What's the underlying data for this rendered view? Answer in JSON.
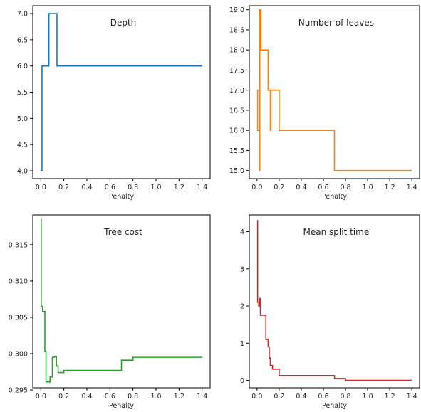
{
  "chart_data": [
    {
      "type": "line",
      "title": "Depth",
      "xlabel": "Penalty",
      "ylabel": "",
      "color": "#1f77b4",
      "step": true,
      "xlim": [
        -0.07,
        1.47
      ],
      "ylim": [
        3.85,
        7.15
      ],
      "xticks": [
        0.0,
        0.2,
        0.4,
        0.6,
        0.8,
        1.0,
        1.2,
        1.4
      ],
      "xtick_labels": [
        "0.0",
        "0.2",
        "0.4",
        "0.6",
        "0.8",
        "1.0",
        "1.2",
        "1.4"
      ],
      "yticks": [
        4.0,
        4.5,
        5.0,
        5.5,
        6.0,
        6.5,
        7.0
      ],
      "ytick_labels": [
        "4.0",
        "4.5",
        "5.0",
        "5.5",
        "6.0",
        "6.5",
        "7.0"
      ],
      "x": [
        0.0,
        0.01,
        0.07,
        0.14,
        1.4
      ],
      "y": [
        4.0,
        6.0,
        7.0,
        6.0,
        6.0
      ]
    },
    {
      "type": "line",
      "title": "Number of leaves",
      "xlabel": "Penalty",
      "ylabel": "",
      "color": "#ff7f0e",
      "step": true,
      "xlim": [
        -0.07,
        1.47
      ],
      "ylim": [
        14.8,
        19.1
      ],
      "xticks": [
        0.0,
        0.2,
        0.4,
        0.6,
        0.8,
        1.0,
        1.2,
        1.4
      ],
      "xtick_labels": [
        "0.0",
        "0.2",
        "0.4",
        "0.6",
        "0.8",
        "1.0",
        "1.2",
        "1.4"
      ],
      "yticks": [
        15.0,
        15.5,
        16.0,
        16.5,
        17.0,
        17.5,
        18.0,
        18.5,
        19.0
      ],
      "ytick_labels": [
        "15.0",
        "15.5",
        "16.0",
        "16.5",
        "17.0",
        "17.5",
        "18.0",
        "18.5",
        "19.0"
      ],
      "x": [
        0.0,
        0.005,
        0.02,
        0.025,
        0.035,
        0.1,
        0.12,
        0.125,
        0.14,
        0.2,
        0.65,
        0.7,
        1.4
      ],
      "y": [
        17.0,
        16.0,
        15.0,
        19.0,
        18.0,
        17.0,
        16.0,
        17.0,
        17.0,
        16.0,
        16.0,
        15.0,
        15.0
      ]
    },
    {
      "type": "line",
      "title": "Tree cost",
      "xlabel": "Penalty",
      "ylabel": "",
      "color": "#2ca02c",
      "step": true,
      "xlim": [
        -0.07,
        1.47
      ],
      "ylim": [
        0.2953,
        0.3191
      ],
      "xticks": [
        0.0,
        0.2,
        0.4,
        0.6,
        0.8,
        1.0,
        1.2,
        1.4
      ],
      "xtick_labels": [
        "0.0",
        "0.2",
        "0.4",
        "0.6",
        "0.8",
        "1.0",
        "1.2",
        "1.4"
      ],
      "yticks": [
        0.295,
        0.3,
        0.305,
        0.31,
        0.315
      ],
      "ytick_labels": [
        "0.295",
        "0.300",
        "0.305",
        "0.310",
        "0.315"
      ],
      "x": [
        0.0,
        0.003,
        0.015,
        0.035,
        0.045,
        0.08,
        0.1,
        0.12,
        0.135,
        0.15,
        0.18,
        0.2,
        0.65,
        0.7,
        0.8,
        1.4
      ],
      "y": [
        0.3185,
        0.3065,
        0.3058,
        0.3003,
        0.2961,
        0.2968,
        0.2995,
        0.2996,
        0.2983,
        0.2974,
        0.2974,
        0.2977,
        0.2977,
        0.2991,
        0.2995,
        0.2995
      ]
    },
    {
      "type": "line",
      "title": "Mean split time",
      "xlabel": "Penalty",
      "ylabel": "",
      "color": "#d62728",
      "step": true,
      "xlim": [
        -0.07,
        1.47
      ],
      "ylim": [
        -0.2,
        4.45
      ],
      "xticks": [
        0.0,
        0.2,
        0.4,
        0.6,
        0.8,
        1.0,
        1.2,
        1.4
      ],
      "xtick_labels": [
        "0.0",
        "0.2",
        "0.4",
        "0.6",
        "0.8",
        "1.0",
        "1.2",
        "1.4"
      ],
      "yticks": [
        0,
        1,
        2,
        3,
        4
      ],
      "ytick_labels": [
        "0",
        "1",
        "2",
        "3",
        "4"
      ],
      "x": [
        0.0,
        0.005,
        0.015,
        0.025,
        0.03,
        0.05,
        0.08,
        0.1,
        0.11,
        0.12,
        0.14,
        0.18,
        0.2,
        0.65,
        0.7,
        0.8,
        1.4
      ],
      "y": [
        4.3,
        2.1,
        2.0,
        2.2,
        1.75,
        1.75,
        1.1,
        0.9,
        0.6,
        0.4,
        0.3,
        0.3,
        0.13,
        0.13,
        0.05,
        0.0,
        0.0
      ]
    }
  ]
}
